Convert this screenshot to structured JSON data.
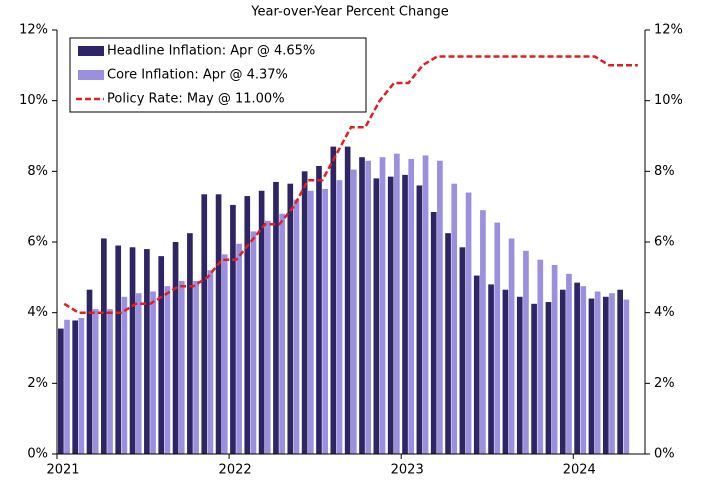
{
  "chart_data": {
    "type": "bar_line",
    "subtitle": "Year-over-Year Percent Change",
    "categories": [
      "2021",
      null,
      null,
      null,
      null,
      null,
      null,
      null,
      null,
      null,
      null,
      null,
      "2022",
      null,
      null,
      null,
      null,
      null,
      null,
      null,
      null,
      null,
      null,
      null,
      "2023",
      null,
      null,
      null,
      null,
      null,
      null,
      null,
      null,
      null,
      null,
      null,
      "2024",
      null,
      null,
      null,
      null
    ],
    "series": [
      {
        "name": "Headline Inflation: Apr @ 4.65%",
        "color": "#2e2565",
        "kind": "bar",
        "values": [
          3.55,
          3.78,
          4.65,
          6.1,
          5.9,
          5.85,
          5.8,
          5.6,
          6.0,
          6.25,
          7.35,
          7.35,
          7.05,
          7.3,
          7.45,
          7.7,
          7.65,
          8.0,
          8.15,
          8.7,
          8.7,
          8.4,
          7.8,
          7.85,
          7.9,
          7.6,
          6.85,
          6.25,
          5.85,
          5.05,
          4.8,
          4.65,
          4.45,
          4.25,
          4.3,
          4.65,
          4.85,
          4.4,
          4.45,
          4.65,
          null
        ]
      },
      {
        "name": "Core Inflation: Apr @ 4.37%",
        "color": "#9b8fe0",
        "kind": "bar",
        "values": [
          3.8,
          3.85,
          4.1,
          4.1,
          4.45,
          4.55,
          4.6,
          4.75,
          4.9,
          4.9,
          5.2,
          5.65,
          5.95,
          6.3,
          6.6,
          6.8,
          7.2,
          7.45,
          7.5,
          7.75,
          8.05,
          8.3,
          8.4,
          8.5,
          8.35,
          8.45,
          8.3,
          7.65,
          7.4,
          6.9,
          6.55,
          6.1,
          5.75,
          5.5,
          5.35,
          5.1,
          4.75,
          4.6,
          4.55,
          4.37,
          null
        ]
      },
      {
        "name": "Policy Rate: May @ 11.00%",
        "color": "#e02020",
        "kind": "line",
        "axis": "y2",
        "values": [
          4.25,
          4.0,
          4.0,
          4.0,
          4.0,
          4.25,
          4.25,
          4.5,
          4.75,
          4.75,
          5.0,
          5.5,
          5.5,
          6.0,
          6.5,
          6.5,
          7.0,
          7.75,
          7.75,
          8.5,
          9.25,
          9.25,
          10.0,
          10.5,
          10.5,
          11.0,
          11.25,
          11.25,
          11.25,
          11.25,
          11.25,
          11.25,
          11.25,
          11.25,
          11.25,
          11.25,
          11.25,
          11.25,
          11.0,
          11.0,
          11.0
        ]
      }
    ],
    "ylim": [
      0,
      12
    ],
    "yticks": [
      {
        "value": 0,
        "label": "0%"
      },
      {
        "value": 2,
        "label": "2%"
      },
      {
        "value": 4,
        "label": "4%"
      },
      {
        "value": 6,
        "label": "6%"
      },
      {
        "value": 8,
        "label": "8%"
      },
      {
        "value": 10,
        "label": "10%"
      },
      {
        "value": 12,
        "label": "12%"
      }
    ],
    "y2lim": [
      0,
      12
    ],
    "y2ticks": [
      {
        "value": 0,
        "label": "0%"
      },
      {
        "value": 2,
        "label": "2%"
      },
      {
        "value": 4,
        "label": "4%"
      },
      {
        "value": 6,
        "label": "6%"
      },
      {
        "value": 8,
        "label": "8%"
      },
      {
        "value": 10,
        "label": "10%"
      },
      {
        "value": 12,
        "label": "12%"
      }
    ],
    "legend": "upper left",
    "grid": false
  }
}
